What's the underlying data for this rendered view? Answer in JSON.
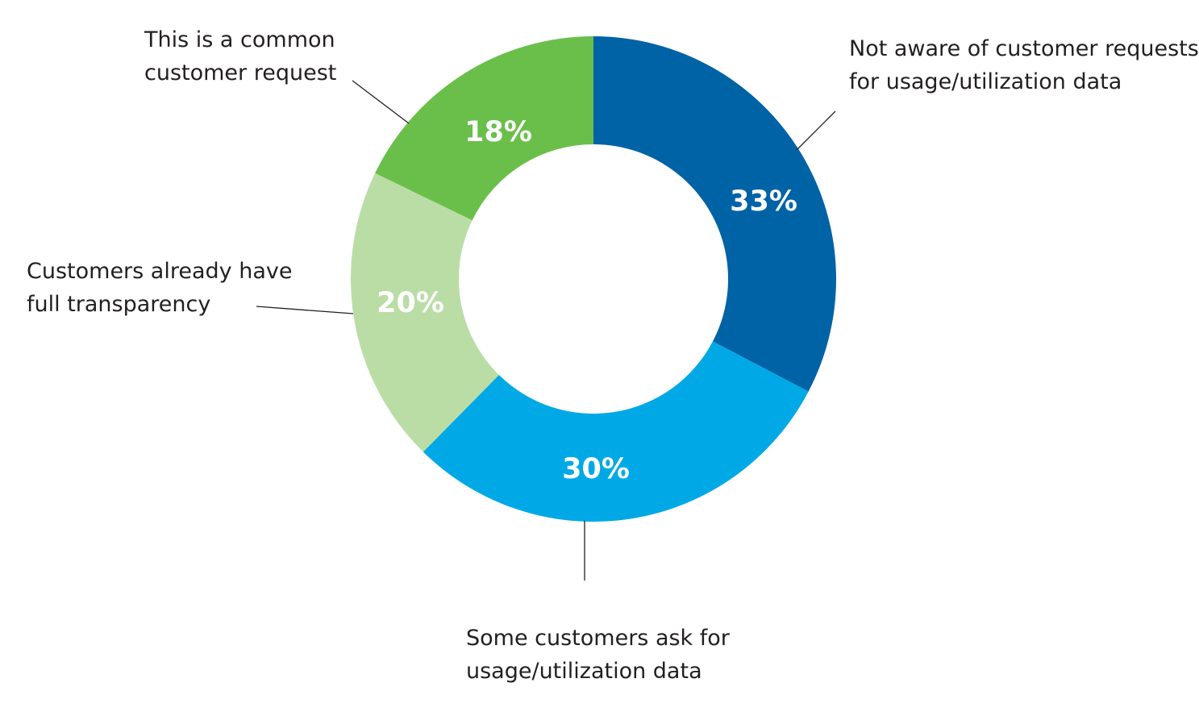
{
  "chart_data": {
    "type": "pie",
    "style": "donut",
    "slices": [
      {
        "label_lines": [
          "Not aware of customer requests",
          "for usage/utilization data"
        ],
        "value": 33,
        "value_label": "33%",
        "color": "#0063a6"
      },
      {
        "label_lines": [
          "Some customers ask for",
          "usage/utilization data"
        ],
        "value": 30,
        "value_label": "30%",
        "color": "#00a9e6"
      },
      {
        "label_lines": [
          "Customers already have",
          "full transparency"
        ],
        "value": 20,
        "value_label": "20%",
        "color": "#badda6"
      },
      {
        "label_lines": [
          "This is a common",
          "customer request"
        ],
        "value": 18,
        "value_label": "18%",
        "color": "#6abf4b"
      }
    ]
  }
}
